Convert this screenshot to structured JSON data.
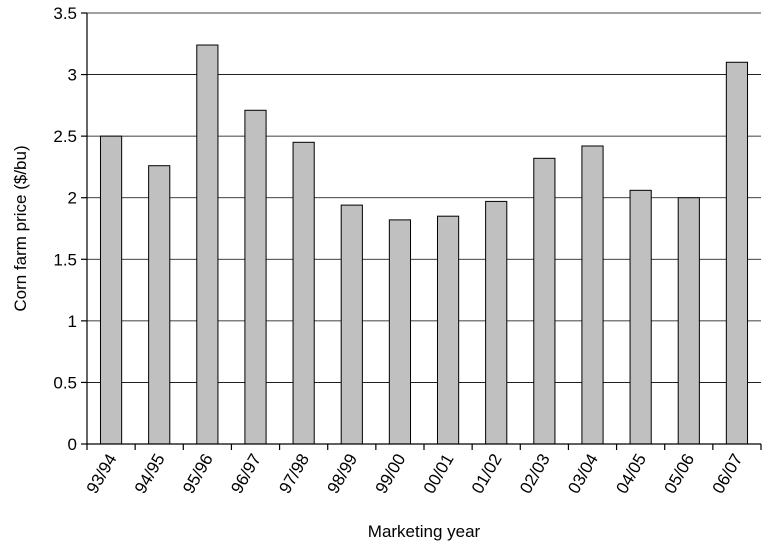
{
  "chart_data": {
    "type": "bar",
    "title": "",
    "xlabel": "Marketing year",
    "ylabel": "Corn farm price ($/bu)",
    "categories": [
      "93/94",
      "94/95",
      "95/96",
      "96/97",
      "97/98",
      "98/99",
      "99/00",
      "00/01",
      "01/02",
      "02/03",
      "03/04",
      "04/05",
      "05/06",
      "06/07"
    ],
    "values": [
      2.5,
      2.26,
      3.24,
      2.71,
      2.45,
      1.94,
      1.82,
      1.85,
      1.97,
      2.32,
      2.42,
      2.06,
      2.0,
      3.1
    ],
    "ylim": [
      0,
      3.5
    ],
    "yticks": [
      "0",
      "0.5",
      "1",
      "1.5",
      "2",
      "2.5",
      "3",
      "3.5"
    ],
    "grid": true,
    "legend": "none",
    "bar_color": "#c0c0c0"
  }
}
